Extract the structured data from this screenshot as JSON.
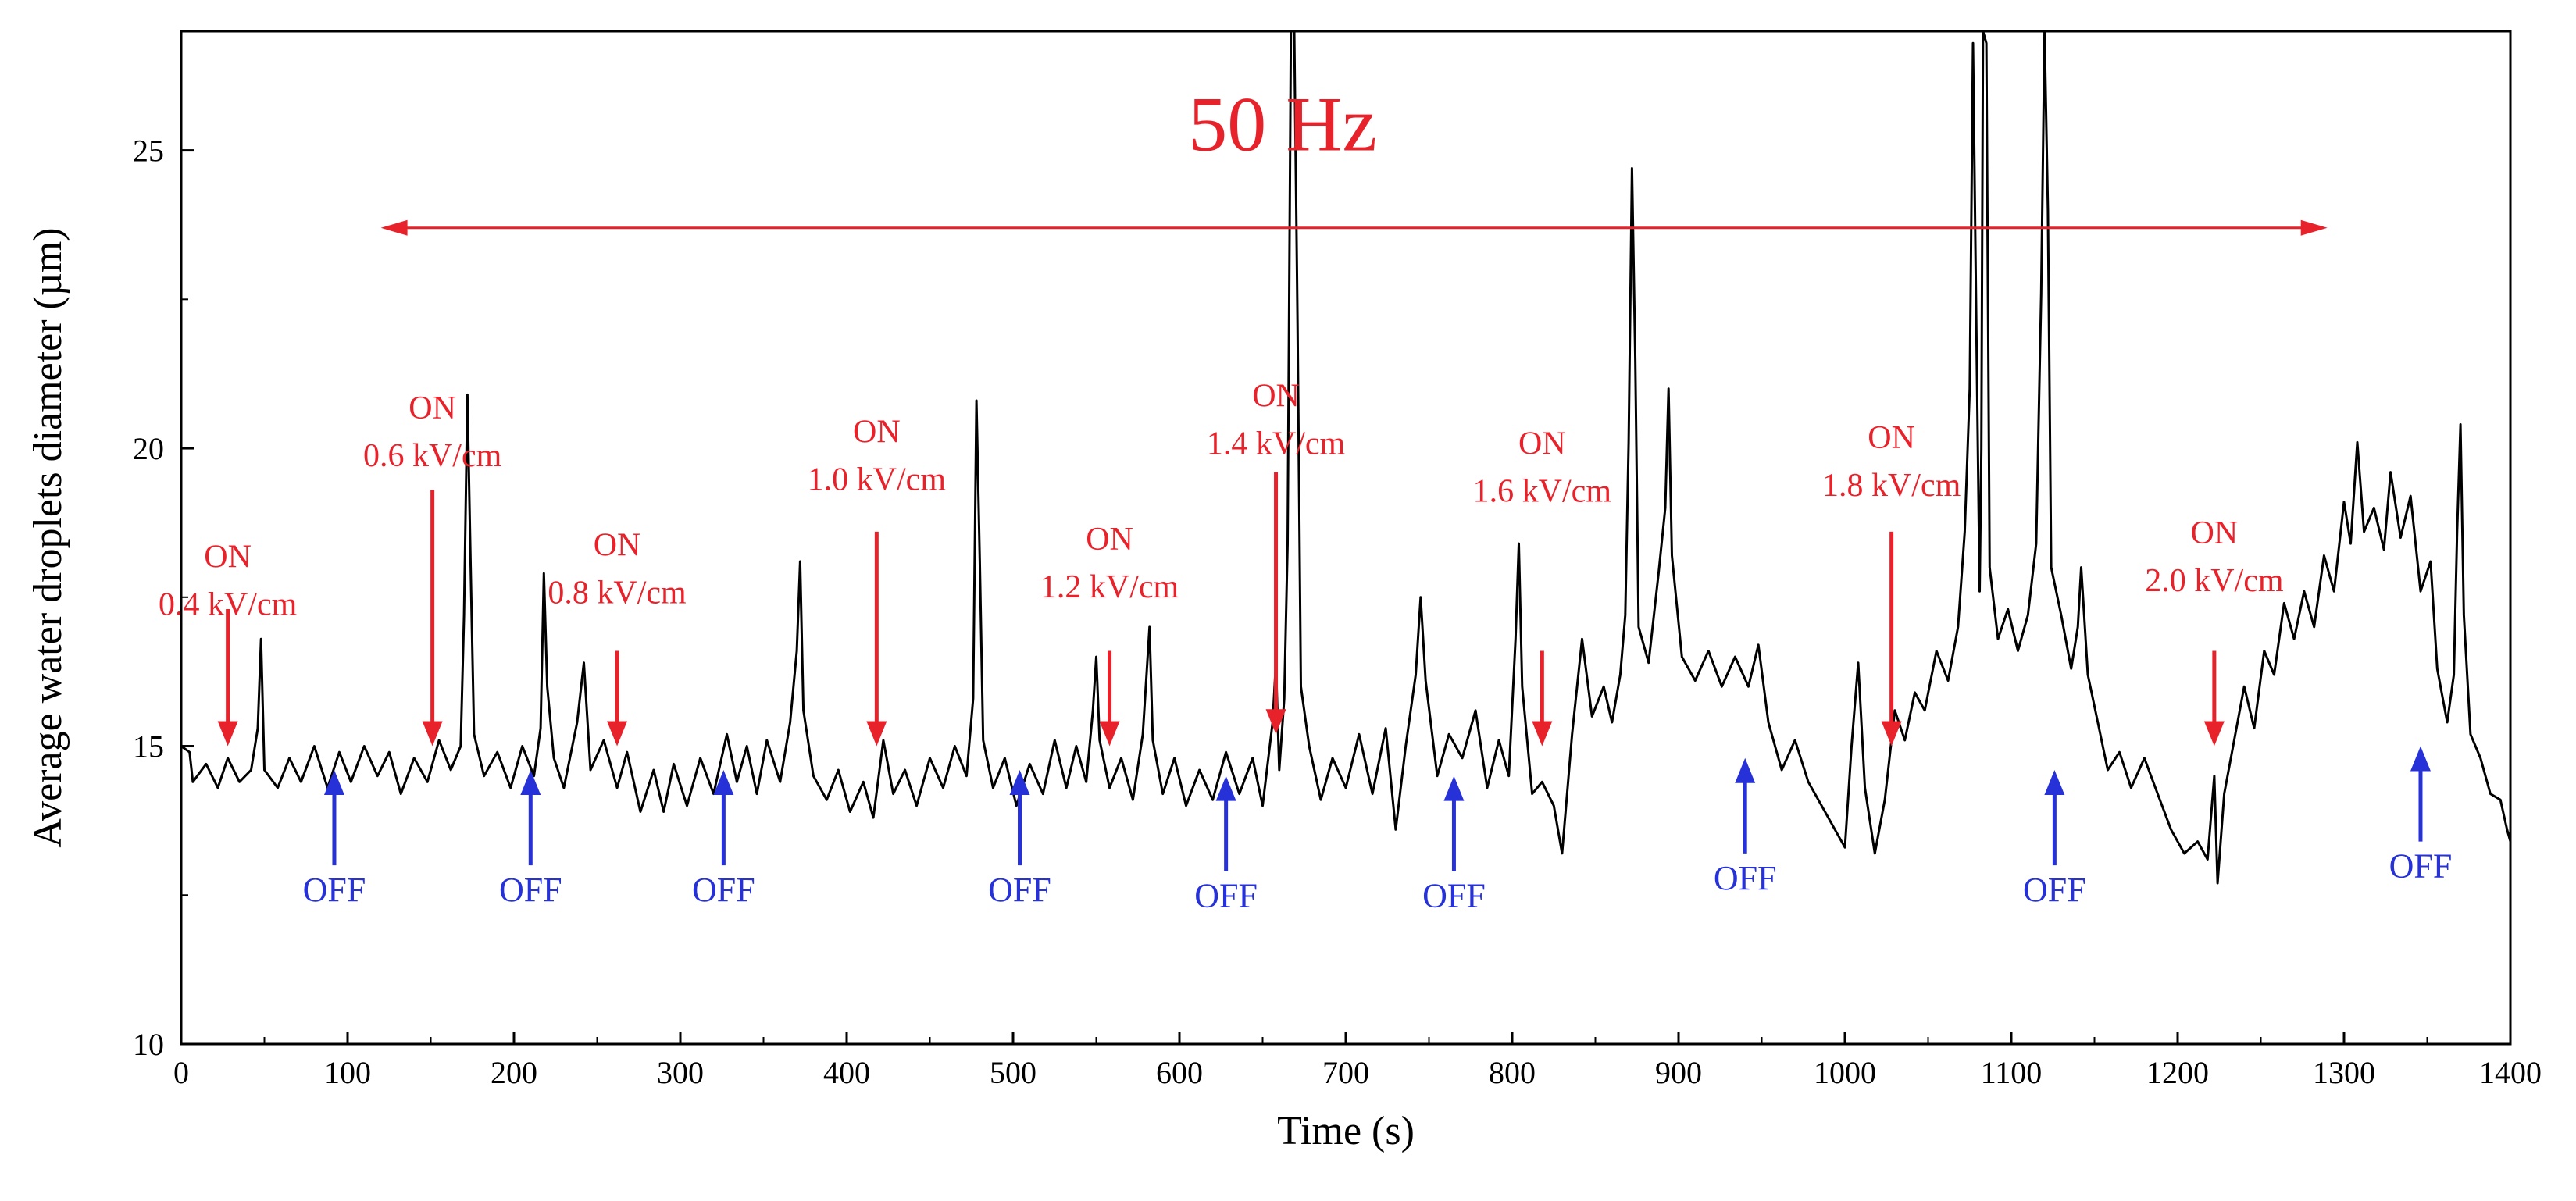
{
  "chart_data": {
    "type": "line",
    "title": "",
    "xlabel": "Time (s)",
    "ylabel": "Average water droplets diameter (µm)",
    "xlim": [
      0,
      1400
    ],
    "ylim": [
      10,
      27
    ],
    "x_ticks": [
      0,
      100,
      200,
      300,
      400,
      500,
      600,
      700,
      800,
      900,
      1000,
      1100,
      1200,
      1300,
      1400
    ],
    "y_ticks": [
      10,
      15,
      20,
      25
    ],
    "frequency_label": "50 Hz",
    "frequency_span": [
      120,
      1290
    ],
    "frequency_arrow_y": 23.7,
    "series": [
      {
        "name": "Average water droplets diameter",
        "color": "#000000",
        "points": [
          [
            0,
            15.0
          ],
          [
            5,
            14.9
          ],
          [
            7,
            14.4
          ],
          [
            15,
            14.7
          ],
          [
            22,
            14.3
          ],
          [
            28,
            14.8
          ],
          [
            35,
            14.4
          ],
          [
            42,
            14.6
          ],
          [
            46,
            15.3
          ],
          [
            48,
            16.8
          ],
          [
            50,
            14.6
          ],
          [
            58,
            14.3
          ],
          [
            65,
            14.8
          ],
          [
            72,
            14.4
          ],
          [
            80,
            15.0
          ],
          [
            88,
            14.3
          ],
          [
            95,
            14.9
          ],
          [
            102,
            14.4
          ],
          [
            110,
            15.0
          ],
          [
            118,
            14.5
          ],
          [
            125,
            14.9
          ],
          [
            132,
            14.2
          ],
          [
            140,
            14.8
          ],
          [
            148,
            14.4
          ],
          [
            155,
            15.1
          ],
          [
            162,
            14.6
          ],
          [
            168,
            15.0
          ],
          [
            170,
            17.2
          ],
          [
            172,
            20.9
          ],
          [
            174,
            18.0
          ],
          [
            176,
            15.2
          ],
          [
            182,
            14.5
          ],
          [
            190,
            14.9
          ],
          [
            198,
            14.3
          ],
          [
            205,
            15.0
          ],
          [
            212,
            14.5
          ],
          [
            216,
            15.3
          ],
          [
            218,
            17.9
          ],
          [
            220,
            16.0
          ],
          [
            224,
            14.8
          ],
          [
            230,
            14.3
          ],
          [
            238,
            15.4
          ],
          [
            242,
            16.4
          ],
          [
            246,
            14.6
          ],
          [
            254,
            15.1
          ],
          [
            262,
            14.3
          ],
          [
            268,
            14.9
          ],
          [
            276,
            13.9
          ],
          [
            284,
            14.6
          ],
          [
            290,
            13.9
          ],
          [
            296,
            14.7
          ],
          [
            304,
            14.0
          ],
          [
            312,
            14.8
          ],
          [
            320,
            14.2
          ],
          [
            328,
            15.2
          ],
          [
            334,
            14.4
          ],
          [
            340,
            15.0
          ],
          [
            346,
            14.2
          ],
          [
            352,
            15.1
          ],
          [
            360,
            14.4
          ],
          [
            366,
            15.4
          ],
          [
            370,
            16.6
          ],
          [
            372,
            18.1
          ],
          [
            374,
            15.6
          ],
          [
            380,
            14.5
          ],
          [
            388,
            14.1
          ],
          [
            395,
            14.6
          ],
          [
            402,
            13.9
          ],
          [
            410,
            14.4
          ],
          [
            416,
            13.8
          ],
          [
            422,
            15.1
          ],
          [
            428,
            14.2
          ],
          [
            435,
            14.6
          ],
          [
            442,
            14.0
          ],
          [
            450,
            14.8
          ],
          [
            458,
            14.3
          ],
          [
            465,
            15.0
          ],
          [
            472,
            14.5
          ],
          [
            476,
            15.8
          ],
          [
            478,
            20.8
          ],
          [
            480,
            18.1
          ],
          [
            482,
            15.1
          ],
          [
            488,
            14.3
          ],
          [
            495,
            14.8
          ],
          [
            502,
            14.0
          ],
          [
            510,
            14.7
          ],
          [
            518,
            14.2
          ],
          [
            525,
            15.1
          ],
          [
            532,
            14.3
          ],
          [
            538,
            15.0
          ],
          [
            544,
            14.4
          ],
          [
            548,
            15.6
          ],
          [
            550,
            16.5
          ],
          [
            552,
            15.1
          ],
          [
            558,
            14.3
          ],
          [
            565,
            14.8
          ],
          [
            572,
            14.1
          ],
          [
            578,
            15.2
          ],
          [
            582,
            17.0
          ],
          [
            584,
            15.1
          ],
          [
            590,
            14.2
          ],
          [
            597,
            14.8
          ],
          [
            604,
            14.0
          ],
          [
            612,
            14.6
          ],
          [
            620,
            14.1
          ],
          [
            628,
            14.9
          ],
          [
            636,
            14.2
          ],
          [
            644,
            14.8
          ],
          [
            650,
            14.0
          ],
          [
            656,
            15.4
          ],
          [
            658,
            16.4
          ],
          [
            660,
            14.6
          ],
          [
            663,
            15.8
          ],
          [
            665,
            18.4
          ],
          [
            667,
            27.0
          ],
          [
            669,
            27.0
          ],
          [
            671,
            22.1
          ],
          [
            673,
            16.0
          ],
          [
            678,
            15.0
          ],
          [
            685,
            14.1
          ],
          [
            692,
            14.8
          ],
          [
            700,
            14.3
          ],
          [
            708,
            15.2
          ],
          [
            716,
            14.2
          ],
          [
            724,
            15.3
          ],
          [
            730,
            13.6
          ],
          [
            736,
            15.0
          ],
          [
            742,
            16.2
          ],
          [
            745,
            17.5
          ],
          [
            748,
            16.1
          ],
          [
            755,
            14.5
          ],
          [
            762,
            15.2
          ],
          [
            770,
            14.8
          ],
          [
            778,
            15.6
          ],
          [
            785,
            14.3
          ],
          [
            792,
            15.1
          ],
          [
            798,
            14.5
          ],
          [
            802,
            16.8
          ],
          [
            804,
            18.4
          ],
          [
            806,
            16.0
          ],
          [
            812,
            14.2
          ],
          [
            818,
            14.4
          ],
          [
            825,
            14.0
          ],
          [
            830,
            13.2
          ],
          [
            836,
            15.2
          ],
          [
            842,
            16.8
          ],
          [
            848,
            15.5
          ],
          [
            855,
            16.0
          ],
          [
            860,
            15.4
          ],
          [
            865,
            16.2
          ],
          [
            868,
            17.2
          ],
          [
            870,
            20.1
          ],
          [
            872,
            24.7
          ],
          [
            874,
            21.5
          ],
          [
            876,
            17.0
          ],
          [
            882,
            16.4
          ],
          [
            888,
            17.9
          ],
          [
            892,
            19.0
          ],
          [
            894,
            21.0
          ],
          [
            896,
            18.2
          ],
          [
            902,
            16.5
          ],
          [
            910,
            16.1
          ],
          [
            918,
            16.6
          ],
          [
            926,
            16.0
          ],
          [
            934,
            16.5
          ],
          [
            942,
            16.0
          ],
          [
            948,
            16.7
          ],
          [
            954,
            15.4
          ],
          [
            962,
            14.6
          ],
          [
            970,
            15.1
          ],
          [
            978,
            14.4
          ],
          [
            986,
            14.0
          ],
          [
            994,
            13.6
          ],
          [
            1000,
            13.3
          ],
          [
            1004,
            15.0
          ],
          [
            1008,
            16.4
          ],
          [
            1012,
            14.3
          ],
          [
            1018,
            13.2
          ],
          [
            1024,
            14.1
          ],
          [
            1030,
            15.6
          ],
          [
            1036,
            15.1
          ],
          [
            1042,
            15.9
          ],
          [
            1048,
            15.6
          ],
          [
            1055,
            16.6
          ],
          [
            1062,
            16.1
          ],
          [
            1068,
            17.0
          ],
          [
            1072,
            18.6
          ],
          [
            1075,
            21.0
          ],
          [
            1077,
            26.8
          ],
          [
            1079,
            22.0
          ],
          [
            1081,
            17.6
          ],
          [
            1082,
            20.0
          ],
          [
            1083,
            27.0
          ],
          [
            1085,
            26.8
          ],
          [
            1087,
            18.0
          ],
          [
            1092,
            16.8
          ],
          [
            1098,
            17.3
          ],
          [
            1104,
            16.6
          ],
          [
            1110,
            17.2
          ],
          [
            1115,
            18.4
          ],
          [
            1118,
            22.6
          ],
          [
            1120,
            27.0
          ],
          [
            1122,
            24.0
          ],
          [
            1124,
            18.0
          ],
          [
            1130,
            17.2
          ],
          [
            1136,
            16.3
          ],
          [
            1140,
            17.0
          ],
          [
            1142,
            18.0
          ],
          [
            1146,
            16.2
          ],
          [
            1152,
            15.4
          ],
          [
            1158,
            14.6
          ],
          [
            1165,
            14.9
          ],
          [
            1172,
            14.3
          ],
          [
            1180,
            14.8
          ],
          [
            1188,
            14.2
          ],
          [
            1196,
            13.6
          ],
          [
            1204,
            13.2
          ],
          [
            1212,
            13.4
          ],
          [
            1218,
            13.1
          ],
          [
            1222,
            14.5
          ],
          [
            1224,
            12.7
          ],
          [
            1228,
            14.2
          ],
          [
            1234,
            15.1
          ],
          [
            1240,
            16.0
          ],
          [
            1246,
            15.3
          ],
          [
            1252,
            16.6
          ],
          [
            1258,
            16.2
          ],
          [
            1264,
            17.4
          ],
          [
            1270,
            16.8
          ],
          [
            1276,
            17.6
          ],
          [
            1282,
            17.0
          ],
          [
            1288,
            18.2
          ],
          [
            1294,
            17.6
          ],
          [
            1300,
            19.1
          ],
          [
            1304,
            18.4
          ],
          [
            1308,
            20.1
          ],
          [
            1312,
            18.6
          ],
          [
            1318,
            19.0
          ],
          [
            1324,
            18.3
          ],
          [
            1328,
            19.6
          ],
          [
            1334,
            18.5
          ],
          [
            1340,
            19.2
          ],
          [
            1346,
            17.6
          ],
          [
            1352,
            18.1
          ],
          [
            1356,
            16.3
          ],
          [
            1362,
            15.4
          ],
          [
            1366,
            16.2
          ],
          [
            1368,
            18.6
          ],
          [
            1370,
            20.4
          ],
          [
            1372,
            17.2
          ],
          [
            1376,
            15.2
          ],
          [
            1382,
            14.8
          ],
          [
            1388,
            14.2
          ],
          [
            1394,
            14.1
          ],
          [
            1398,
            13.6
          ],
          [
            1400,
            13.4
          ]
        ]
      }
    ],
    "annotations": [
      {
        "lines": [
          "ON",
          "0.4 kV/cm"
        ],
        "x": 28,
        "arrow_from": 17.3,
        "arrow_to": 15.0,
        "label_y1": 18.0,
        "label_y2": 17.2
      },
      {
        "lines": [
          "ON",
          "0.6 kV/cm"
        ],
        "x": 151,
        "arrow_from": 19.3,
        "arrow_to": 15.0,
        "label_y1": 20.5,
        "label_y2": 19.7
      },
      {
        "lines": [
          "ON",
          "0.8 kV/cm"
        ],
        "x": 262,
        "arrow_from": 16.6,
        "arrow_to": 15.0,
        "label_y1": 18.2,
        "label_y2": 17.4
      },
      {
        "lines": [
          "ON",
          "1.0 kV/cm"
        ],
        "x": 418,
        "arrow_from": 18.6,
        "arrow_to": 15.0,
        "label_y1": 20.1,
        "label_y2": 19.3
      },
      {
        "lines": [
          "ON",
          "1.2 kV/cm"
        ],
        "x": 558,
        "arrow_from": 16.6,
        "arrow_to": 15.0,
        "label_y1": 18.3,
        "label_y2": 17.5
      },
      {
        "lines": [
          "ON",
          "1.4 kV/cm"
        ],
        "x": 658,
        "arrow_from": 19.6,
        "arrow_to": 15.2,
        "label_y1": 20.7,
        "label_y2": 19.9
      },
      {
        "lines": [
          "ON",
          "1.6 kV/cm"
        ],
        "x": 818,
        "arrow_from": 16.6,
        "arrow_to": 15.0,
        "label_y1": 19.9,
        "label_y2": 19.1
      },
      {
        "lines": [
          "ON",
          "1.8 kV/cm"
        ],
        "x": 1028,
        "arrow_from": 18.6,
        "arrow_to": 15.0,
        "label_y1": 20.0,
        "label_y2": 19.2
      },
      {
        "lines": [
          "ON",
          "2.0 kV/cm"
        ],
        "x": 1222,
        "arrow_from": 16.6,
        "arrow_to": 15.0,
        "label_y1": 18.4,
        "label_y2": 17.6
      }
    ],
    "off_markers": [
      {
        "label": "OFF",
        "x": 92,
        "y": 14.6
      },
      {
        "label": "OFF",
        "x": 210,
        "y": 14.6
      },
      {
        "label": "OFF",
        "x": 326,
        "y": 14.6
      },
      {
        "label": "OFF",
        "x": 504,
        "y": 14.6
      },
      {
        "label": "OFF",
        "x": 628,
        "y": 14.5
      },
      {
        "label": "OFF",
        "x": 765,
        "y": 14.5
      },
      {
        "label": "OFF",
        "x": 940,
        "y": 14.8
      },
      {
        "label": "OFF",
        "x": 1126,
        "y": 14.6
      },
      {
        "label": "OFF",
        "x": 1346,
        "y": 15.0
      }
    ]
  }
}
